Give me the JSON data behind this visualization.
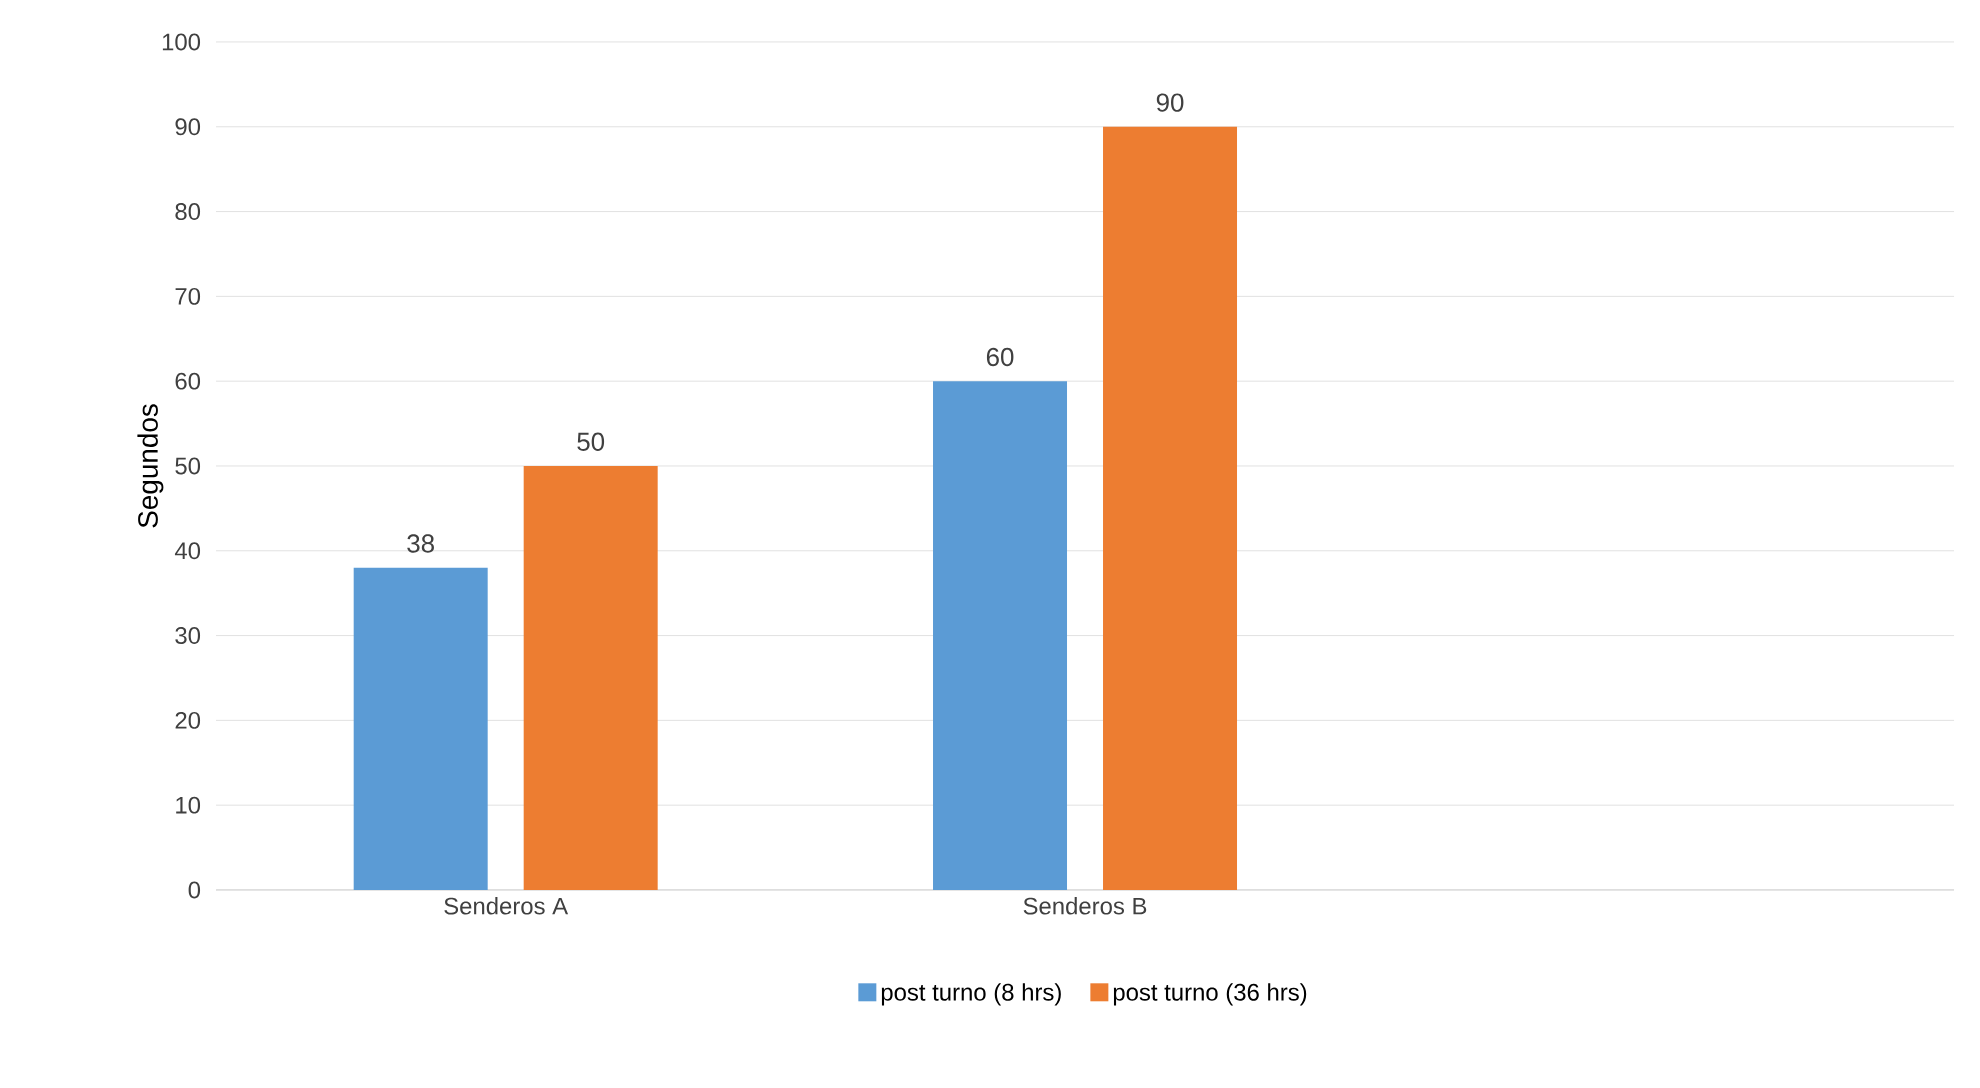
{
  "chart_data": {
    "type": "bar",
    "ylabel": "Segundos",
    "categories": [
      "Senderos A",
      "Senderos B",
      null
    ],
    "series": [
      {
        "name": "post turno (8 hrs)",
        "color": "#5b9bd5",
        "values": [
          38,
          60,
          null
        ]
      },
      {
        "name": "post turno (36 hrs)",
        "color": "#ed7d31",
        "values": [
          50,
          90,
          null
        ]
      }
    ],
    "ylim": [
      0,
      100
    ],
    "yticks": [
      0,
      10,
      20,
      30,
      40,
      50,
      60,
      70,
      80,
      90,
      100
    ],
    "grid": "y",
    "legend": "bottom",
    "data_labels": true
  }
}
